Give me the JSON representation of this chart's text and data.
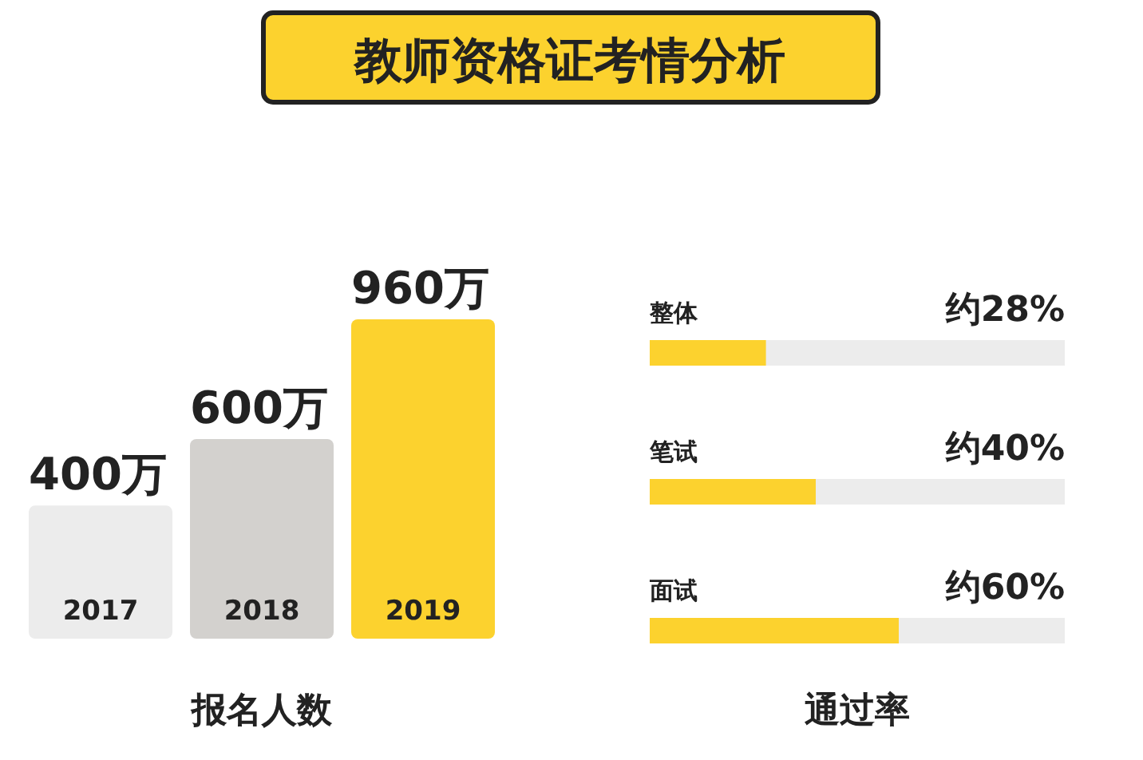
{
  "chart_data": [
    {
      "type": "bar",
      "title": "教师资格证考情分析",
      "categories": [
        "2017",
        "2018",
        "2019"
      ],
      "values": [
        400,
        600,
        960
      ],
      "colors": [
        "#ececec",
        "#d3d1ce",
        "#fcd22e"
      ],
      "value_labels": [
        "400万",
        "600万",
        "960万"
      ],
      "xlabel": "报名人数"
    },
    {
      "type": "bar",
      "orientation": "horizontal",
      "categories": [
        "整体",
        "笔试",
        "面试"
      ],
      "values": [
        28,
        40,
        60
      ],
      "color": "#fcd22e",
      "xlim": [
        0,
        100
      ],
      "value_labels": [
        "约28%",
        "约40%",
        "约60%"
      ],
      "xlabel": "通过率"
    }
  ]
}
